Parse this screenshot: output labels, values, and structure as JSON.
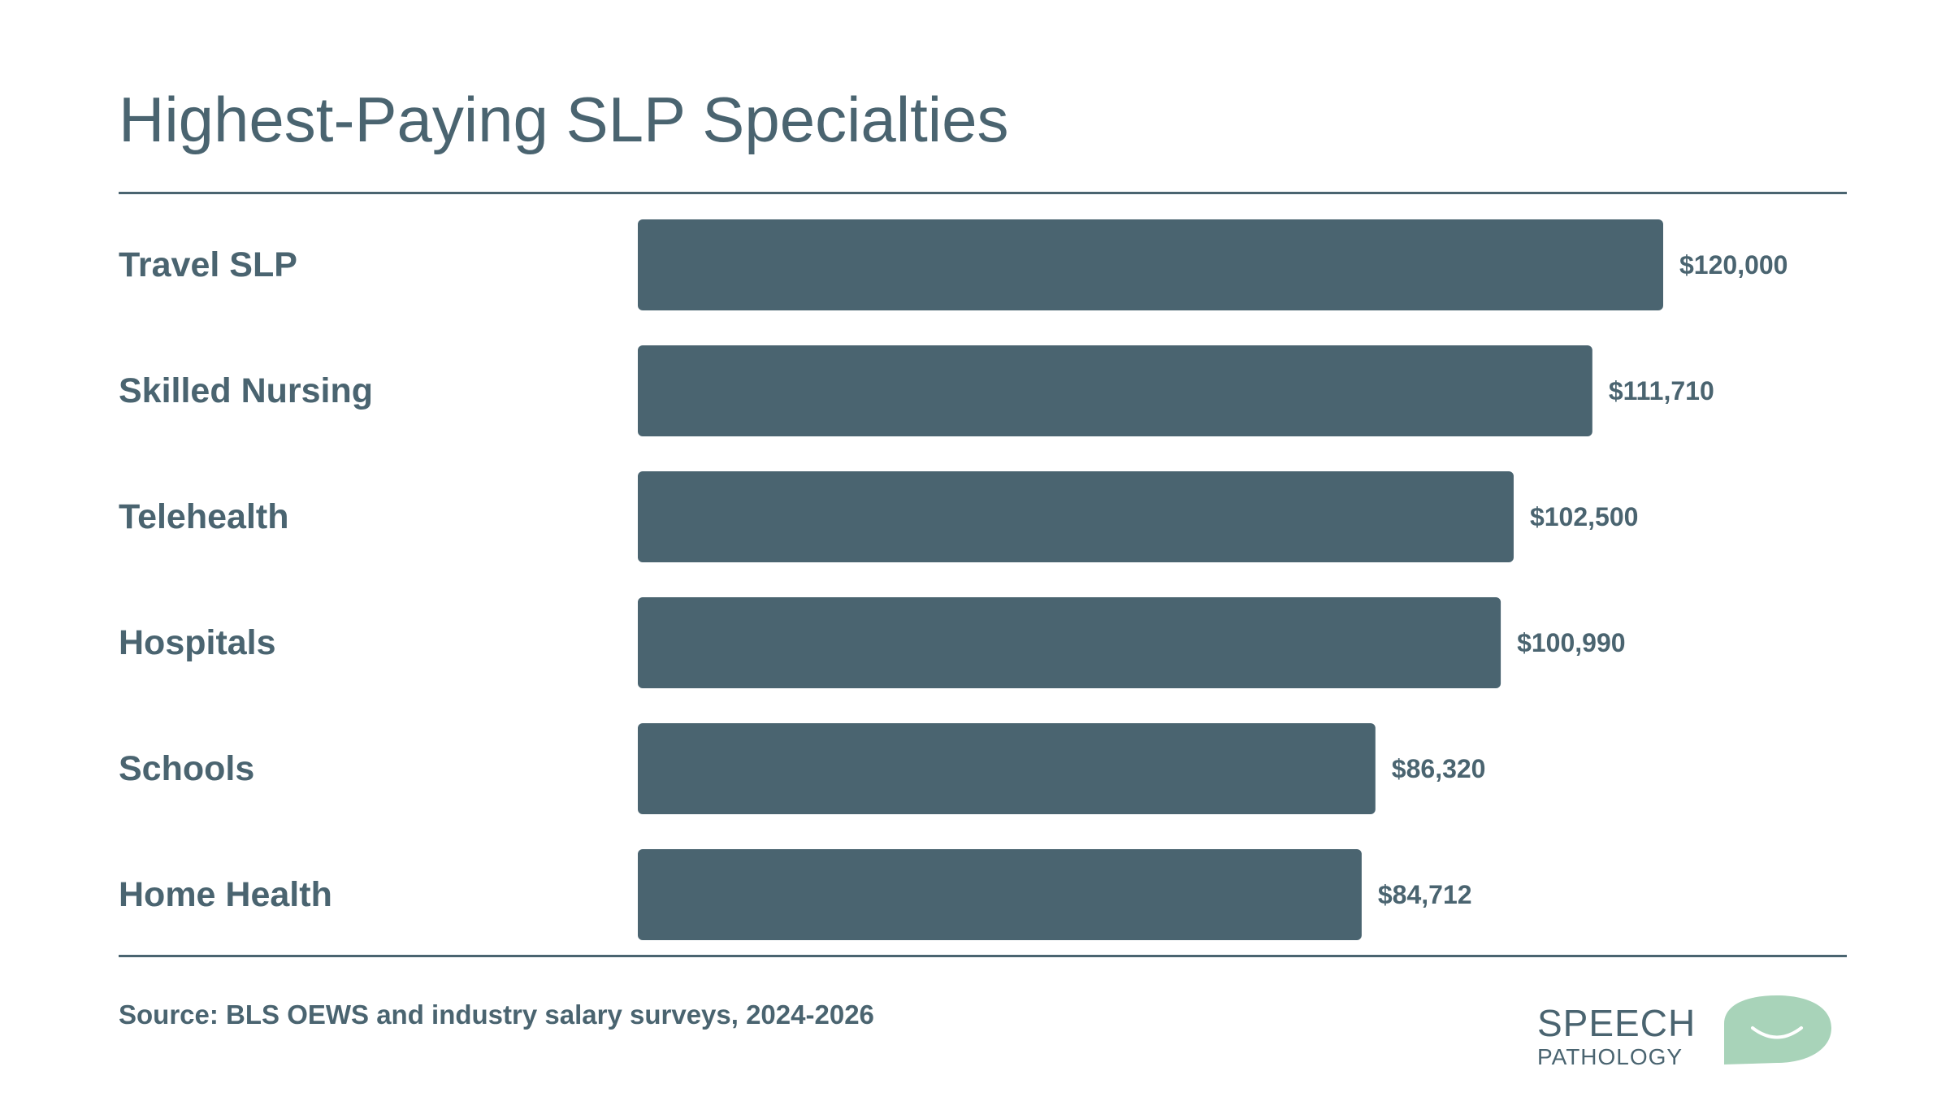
{
  "chart_data": {
    "type": "bar",
    "orientation": "horizontal",
    "title": "Highest-Paying SLP Specialties",
    "categories": [
      "Travel SLP",
      "Skilled Nursing",
      "Telehealth",
      "Hospitals",
      "Schools",
      "Home Health"
    ],
    "values": [
      120000,
      111710,
      102500,
      100990,
      86320,
      84712
    ],
    "value_labels": [
      "$120,000",
      "$111,710",
      "$102,500",
      "$100,990",
      "$86,320",
      "$84,712"
    ],
    "xlim": [
      0,
      120000
    ],
    "grid": false,
    "legend": "none",
    "bar_color": "#4a6470"
  },
  "source_text": "Source: BLS OEWS and industry salary surveys, 2024-2026",
  "logo": {
    "line1": "SPEECH",
    "line2": "PATHOLOGY",
    "bubble_color": "#a8d3b9",
    "text_color": "#4a6470"
  },
  "colors": {
    "text": "#4a6470",
    "background": "#ffffff"
  }
}
